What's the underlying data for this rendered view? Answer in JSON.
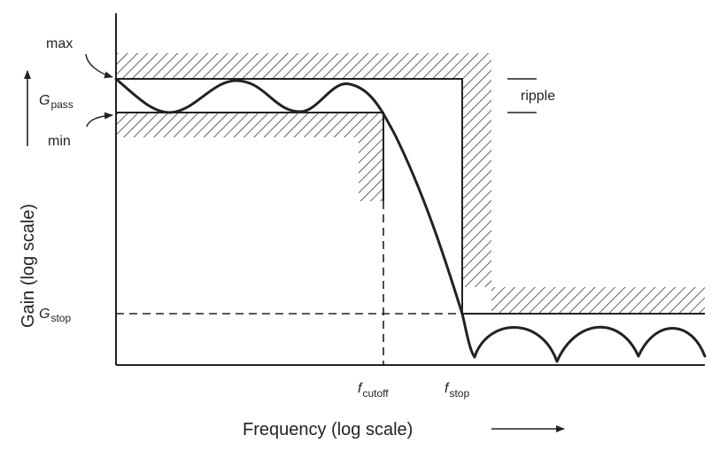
{
  "diagram": {
    "labels": {
      "max": "max",
      "min": "min",
      "ripple": "ripple",
      "g_pass_main": "G",
      "g_pass_sub": "pass",
      "g_stop_main": "G",
      "g_stop_sub": "stop",
      "f_cutoff_main": "f",
      "f_cutoff_sub": "cutoff",
      "f_stop_main": "f",
      "f_stop_sub": "stop"
    },
    "x_axis_label": "Frequency (log scale)",
    "y_axis_label": "Gain (log scale)",
    "colors": {
      "ink": "#222222",
      "background": "#ffffff"
    }
  }
}
